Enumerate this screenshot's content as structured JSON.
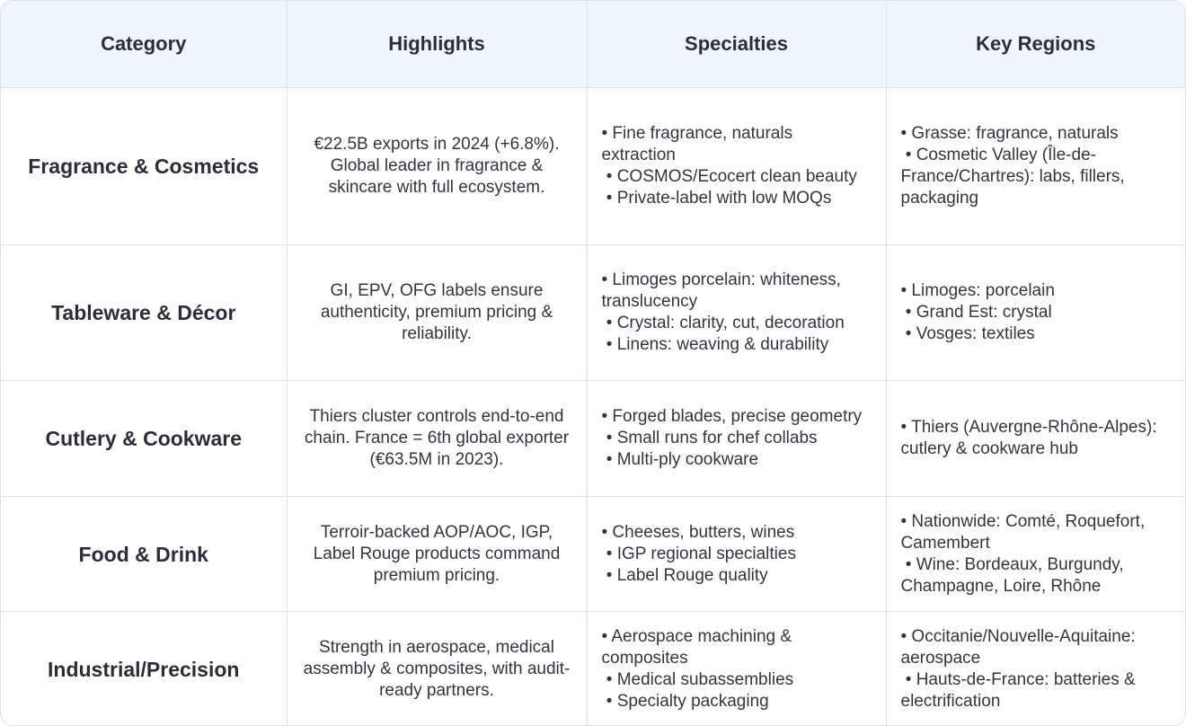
{
  "headers": [
    "Category",
    "Highlights",
    "Specialties",
    "Key Regions"
  ],
  "rows": [
    {
      "category": "Fragrance & Cosmetics",
      "highlights": "€22.5B exports in 2024 (+6.8%). Global leader in fragrance & skincare with full ecosystem.",
      "specialties": [
        "• Fine fragrance, naturals extraction",
        " • COSMOS/Ecocert clean beauty",
        " • Private-label with low MOQs"
      ],
      "regions": [
        "• Grasse: fragrance, naturals",
        " • Cosmetic Valley (Île-de-France/Chartres): labs, fillers, packaging"
      ]
    },
    {
      "category": "Tableware & Décor",
      "highlights": "GI, EPV, OFG labels ensure authenticity, premium pricing & reliability.",
      "specialties": [
        "• Limoges porcelain: whiteness, translucency",
        " • Crystal: clarity, cut, decoration",
        " • Linens: weaving & durability"
      ],
      "regions": [
        "• Limoges: porcelain",
        " • Grand Est: crystal",
        " • Vosges: textiles"
      ]
    },
    {
      "category": "Cutlery & Cookware",
      "highlights": "Thiers cluster controls end-to-end chain. France = 6th global exporter (€63.5M in 2023).",
      "specialties": [
        "• Forged blades, precise geometry",
        " • Small runs for chef collabs",
        " • Multi-ply cookware"
      ],
      "regions": [
        "• Thiers (Auvergne-Rhône-Alpes): cutlery & cookware hub"
      ]
    },
    {
      "category": "Food & Drink",
      "highlights": "Terroir-backed AOP/AOC, IGP, Label Rouge products command premium pricing.",
      "specialties": [
        "• Cheeses, butters, wines",
        " • IGP regional specialties",
        " • Label Rouge quality"
      ],
      "regions": [
        "• Nationwide: Comté, Roquefort, Camembert",
        " • Wine: Bordeaux, Burgundy, Champagne, Loire, Rhône"
      ]
    },
    {
      "category": "Industrial/Precision",
      "highlights": "Strength in aerospace, medical assembly & composites, with audit-ready partners.",
      "specialties": [
        "• Aerospace machining & composites",
        " • Medical subassemblies",
        " • Specialty packaging"
      ],
      "regions": [
        "• Occitanie/Nouvelle-Aquitaine: aerospace",
        " • Hauts-de-France: batteries & electrification"
      ]
    }
  ]
}
